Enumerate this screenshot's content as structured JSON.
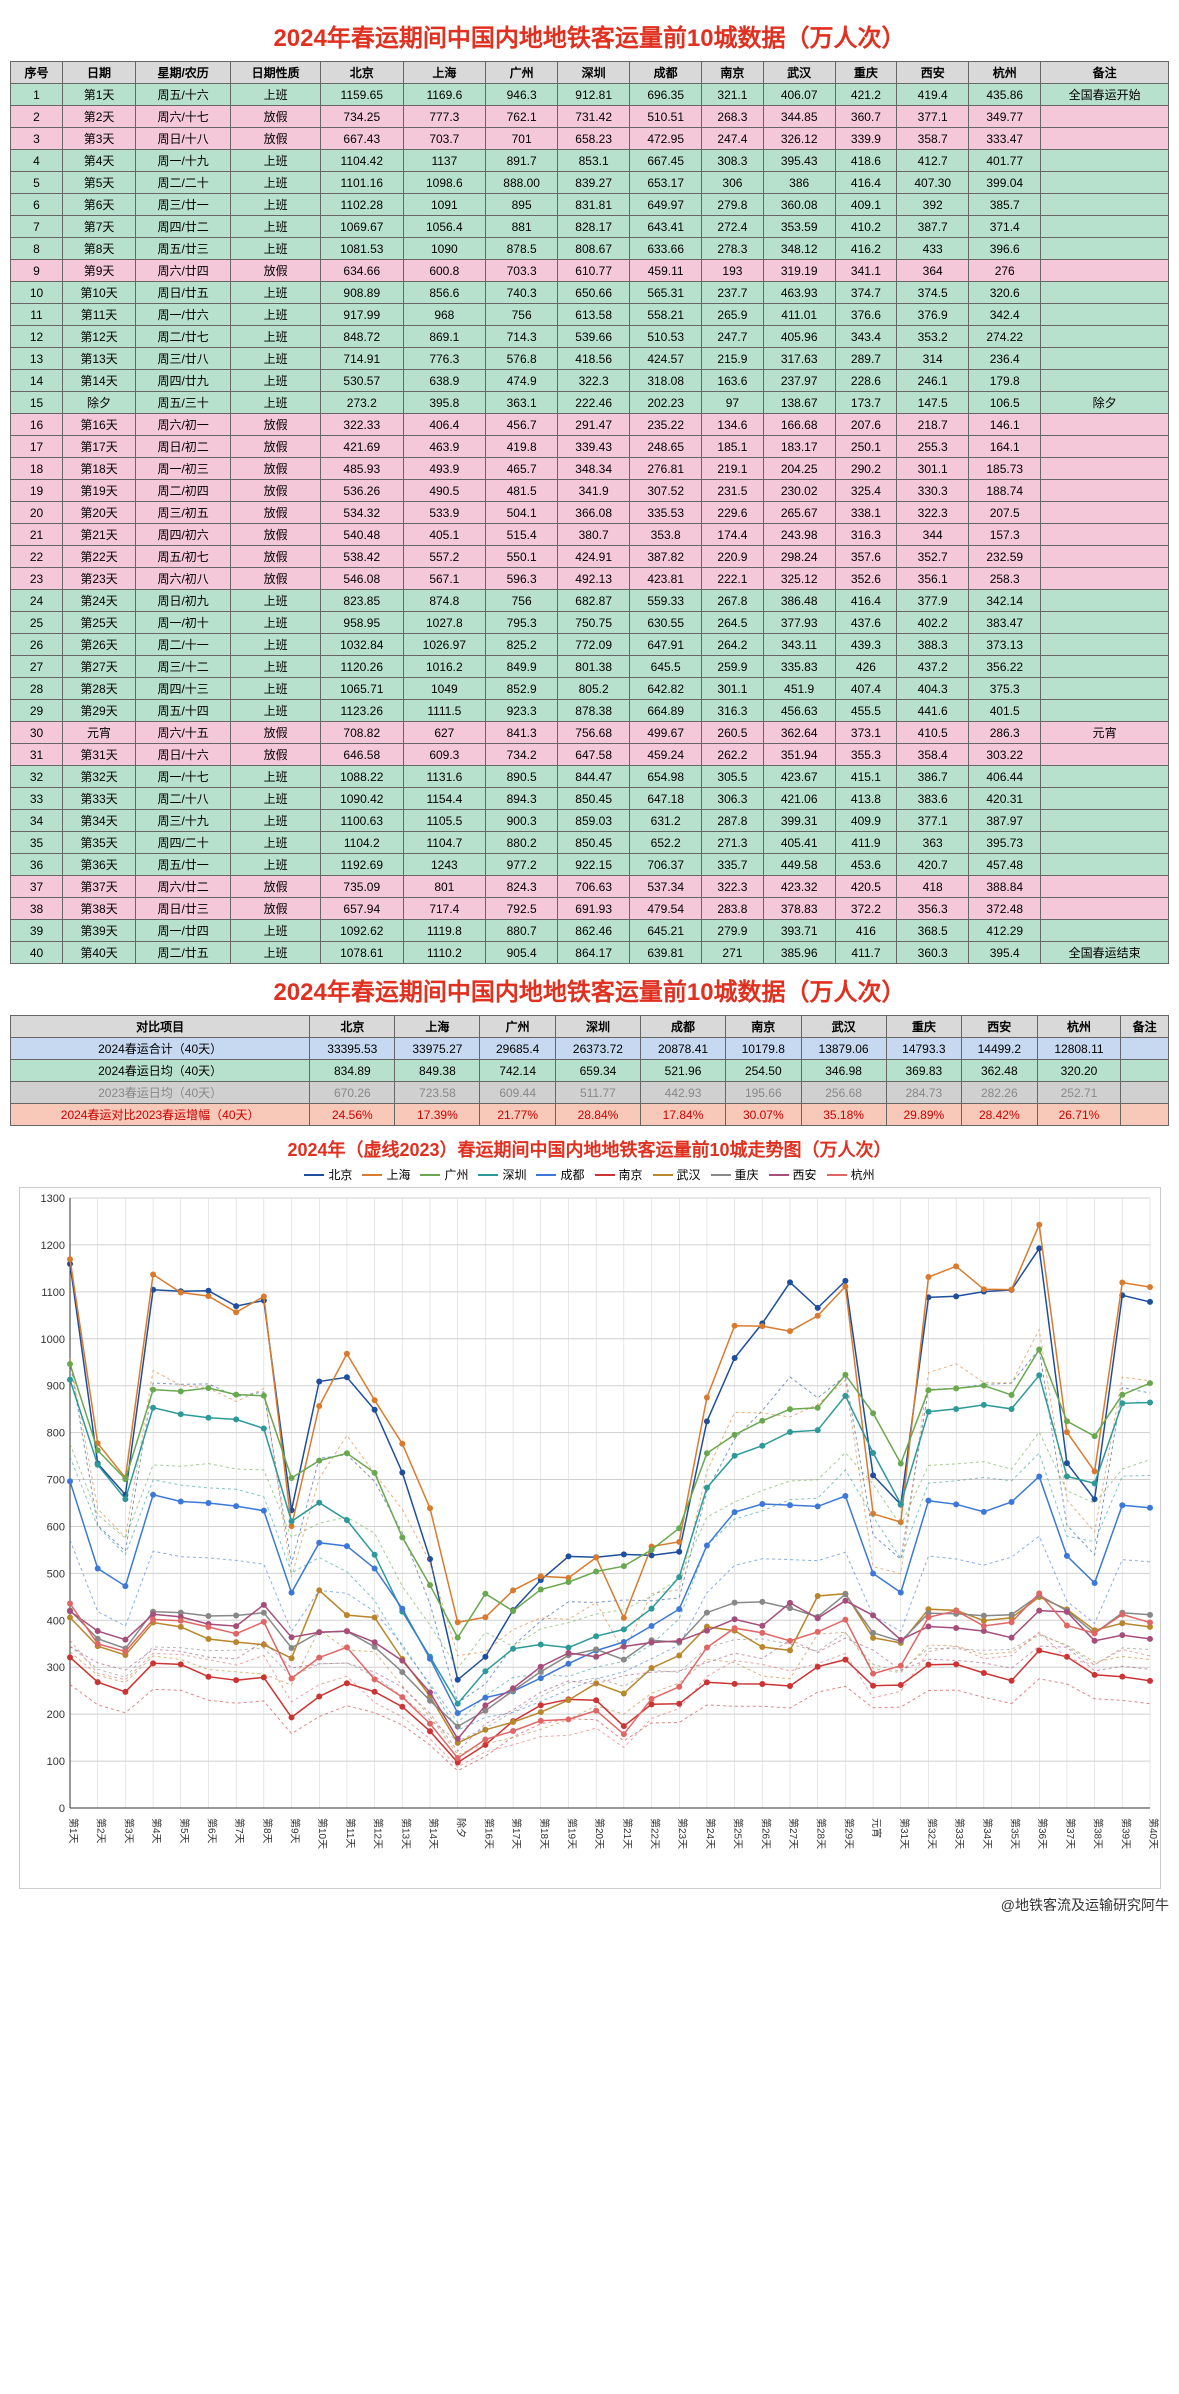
{
  "title_main": "2024年春运期间中国内地地铁客运量前10城数据（万人次）",
  "chart_title": "2024年（虚线2023）春运期间中国内地地铁客运量前10城走势图（万人次）",
  "footer": "@地铁客流及运输研究阿牛",
  "main_table": {
    "columns": [
      "序号",
      "日期",
      "星期/农历",
      "日期性质",
      "北京",
      "上海",
      "广州",
      "深圳",
      "成都",
      "南京",
      "武汉",
      "重庆",
      "西安",
      "杭州",
      "备注"
    ],
    "rows": [
      [
        "1",
        "第1天",
        "周五/十六",
        "上班",
        "1159.65",
        "1169.6",
        "946.3",
        "912.81",
        "696.35",
        "321.1",
        "406.07",
        "421.2",
        "419.4",
        "435.86",
        "全国春运开始"
      ],
      [
        "2",
        "第2天",
        "周六/十七",
        "放假",
        "734.25",
        "777.3",
        "762.1",
        "731.42",
        "510.51",
        "268.3",
        "344.85",
        "360.7",
        "377.1",
        "349.77",
        ""
      ],
      [
        "3",
        "第3天",
        "周日/十八",
        "放假",
        "667.43",
        "703.7",
        "701",
        "658.23",
        "472.95",
        "247.4",
        "326.12",
        "339.9",
        "358.7",
        "333.47",
        ""
      ],
      [
        "4",
        "第4天",
        "周一/十九",
        "上班",
        "1104.42",
        "1137",
        "891.7",
        "853.1",
        "667.45",
        "308.3",
        "395.43",
        "418.6",
        "412.7",
        "401.77",
        ""
      ],
      [
        "5",
        "第5天",
        "周二/二十",
        "上班",
        "1101.16",
        "1098.6",
        "888.00",
        "839.27",
        "653.17",
        "306",
        "386",
        "416.4",
        "407.30",
        "399.04",
        ""
      ],
      [
        "6",
        "第6天",
        "周三/廿一",
        "上班",
        "1102.28",
        "1091",
        "895",
        "831.81",
        "649.97",
        "279.8",
        "360.08",
        "409.1",
        "392",
        "385.7",
        ""
      ],
      [
        "7",
        "第7天",
        "周四/廿二",
        "上班",
        "1069.67",
        "1056.4",
        "881",
        "828.17",
        "643.41",
        "272.4",
        "353.59",
        "410.2",
        "387.7",
        "371.4",
        ""
      ],
      [
        "8",
        "第8天",
        "周五/廿三",
        "上班",
        "1081.53",
        "1090",
        "878.5",
        "808.67",
        "633.66",
        "278.3",
        "348.12",
        "416.2",
        "433",
        "396.6",
        ""
      ],
      [
        "9",
        "第9天",
        "周六/廿四",
        "放假",
        "634.66",
        "600.8",
        "703.3",
        "610.77",
        "459.11",
        "193",
        "319.19",
        "341.1",
        "364",
        "276",
        ""
      ],
      [
        "10",
        "第10天",
        "周日/廿五",
        "上班",
        "908.89",
        "856.6",
        "740.3",
        "650.66",
        "565.31",
        "237.7",
        "463.93",
        "374.7",
        "374.5",
        "320.6",
        ""
      ],
      [
        "11",
        "第11天",
        "周一/廿六",
        "上班",
        "917.99",
        "968",
        "756",
        "613.58",
        "558.21",
        "265.9",
        "411.01",
        "376.6",
        "376.9",
        "342.4",
        ""
      ],
      [
        "12",
        "第12天",
        "周二/廿七",
        "上班",
        "848.72",
        "869.1",
        "714.3",
        "539.66",
        "510.53",
        "247.7",
        "405.96",
        "343.4",
        "353.2",
        "274.22",
        ""
      ],
      [
        "13",
        "第13天",
        "周三/廿八",
        "上班",
        "714.91",
        "776.3",
        "576.8",
        "418.56",
        "424.57",
        "215.9",
        "317.63",
        "289.7",
        "314",
        "236.4",
        ""
      ],
      [
        "14",
        "第14天",
        "周四/廿九",
        "上班",
        "530.57",
        "638.9",
        "474.9",
        "322.3",
        "318.08",
        "163.6",
        "237.97",
        "228.6",
        "246.1",
        "179.8",
        ""
      ],
      [
        "15",
        "除夕",
        "周五/三十",
        "上班",
        "273.2",
        "395.8",
        "363.1",
        "222.46",
        "202.23",
        "97",
        "138.67",
        "173.7",
        "147.5",
        "106.5",
        "除夕"
      ],
      [
        "16",
        "第16天",
        "周六/初一",
        "放假",
        "322.33",
        "406.4",
        "456.7",
        "291.47",
        "235.22",
        "134.6",
        "166.68",
        "207.6",
        "218.7",
        "146.1",
        ""
      ],
      [
        "17",
        "第17天",
        "周日/初二",
        "放假",
        "421.69",
        "463.9",
        "419.8",
        "339.43",
        "248.65",
        "185.1",
        "183.17",
        "250.1",
        "255.3",
        "164.1",
        ""
      ],
      [
        "18",
        "第18天",
        "周一/初三",
        "放假",
        "485.93",
        "493.9",
        "465.7",
        "348.34",
        "276.81",
        "219.1",
        "204.25",
        "290.2",
        "301.1",
        "185.73",
        ""
      ],
      [
        "19",
        "第19天",
        "周二/初四",
        "放假",
        "536.26",
        "490.5",
        "481.5",
        "341.9",
        "307.52",
        "231.5",
        "230.02",
        "325.4",
        "330.3",
        "188.74",
        ""
      ],
      [
        "20",
        "第20天",
        "周三/初五",
        "放假",
        "534.32",
        "533.9",
        "504.1",
        "366.08",
        "335.53",
        "229.6",
        "265.67",
        "338.1",
        "322.3",
        "207.5",
        ""
      ],
      [
        "21",
        "第21天",
        "周四/初六",
        "放假",
        "540.48",
        "405.1",
        "515.4",
        "380.7",
        "353.8",
        "174.4",
        "243.98",
        "316.3",
        "344",
        "157.3",
        ""
      ],
      [
        "22",
        "第22天",
        "周五/初七",
        "放假",
        "538.42",
        "557.2",
        "550.1",
        "424.91",
        "387.82",
        "220.9",
        "298.24",
        "357.6",
        "352.7",
        "232.59",
        ""
      ],
      [
        "23",
        "第23天",
        "周六/初八",
        "放假",
        "546.08",
        "567.1",
        "596.3",
        "492.13",
        "423.81",
        "222.1",
        "325.12",
        "352.6",
        "356.1",
        "258.3",
        ""
      ],
      [
        "24",
        "第24天",
        "周日/初九",
        "上班",
        "823.85",
        "874.8",
        "756",
        "682.87",
        "559.33",
        "267.8",
        "386.48",
        "416.4",
        "377.9",
        "342.14",
        ""
      ],
      [
        "25",
        "第25天",
        "周一/初十",
        "上班",
        "958.95",
        "1027.8",
        "795.3",
        "750.75",
        "630.55",
        "264.5",
        "377.93",
        "437.6",
        "402.2",
        "383.47",
        ""
      ],
      [
        "26",
        "第26天",
        "周二/十一",
        "上班",
        "1032.84",
        "1026.97",
        "825.2",
        "772.09",
        "647.91",
        "264.2",
        "343.11",
        "439.3",
        "388.3",
        "373.13",
        ""
      ],
      [
        "27",
        "第27天",
        "周三/十二",
        "上班",
        "1120.26",
        "1016.2",
        "849.9",
        "801.38",
        "645.5",
        "259.9",
        "335.83",
        "426",
        "437.2",
        "356.22",
        ""
      ],
      [
        "28",
        "第28天",
        "周四/十三",
        "上班",
        "1065.71",
        "1049",
        "852.9",
        "805.2",
        "642.82",
        "301.1",
        "451.9",
        "407.4",
        "404.3",
        "375.3",
        ""
      ],
      [
        "29",
        "第29天",
        "周五/十四",
        "上班",
        "1123.26",
        "1111.5",
        "923.3",
        "878.38",
        "664.89",
        "316.3",
        "456.63",
        "455.5",
        "441.6",
        "401.5",
        ""
      ],
      [
        "30",
        "元宵",
        "周六/十五",
        "放假",
        "708.82",
        "627",
        "841.3",
        "756.68",
        "499.67",
        "260.5",
        "362.64",
        "373.1",
        "410.5",
        "286.3",
        "元宵"
      ],
      [
        "31",
        "第31天",
        "周日/十六",
        "放假",
        "646.58",
        "609.3",
        "734.2",
        "647.58",
        "459.24",
        "262.2",
        "351.94",
        "355.3",
        "358.4",
        "303.22",
        ""
      ],
      [
        "32",
        "第32天",
        "周一/十七",
        "上班",
        "1088.22",
        "1131.6",
        "890.5",
        "844.47",
        "654.98",
        "305.5",
        "423.67",
        "415.1",
        "386.7",
        "406.44",
        ""
      ],
      [
        "33",
        "第33天",
        "周二/十八",
        "上班",
        "1090.42",
        "1154.4",
        "894.3",
        "850.45",
        "647.18",
        "306.3",
        "421.06",
        "413.8",
        "383.6",
        "420.31",
        ""
      ],
      [
        "34",
        "第34天",
        "周三/十九",
        "上班",
        "1100.63",
        "1105.5",
        "900.3",
        "859.03",
        "631.2",
        "287.8",
        "399.31",
        "409.9",
        "377.1",
        "387.97",
        ""
      ],
      [
        "35",
        "第35天",
        "周四/二十",
        "上班",
        "1104.2",
        "1104.7",
        "880.2",
        "850.45",
        "652.2",
        "271.3",
        "405.41",
        "411.9",
        "363",
        "395.73",
        ""
      ],
      [
        "36",
        "第36天",
        "周五/廿一",
        "上班",
        "1192.69",
        "1243",
        "977.2",
        "922.15",
        "706.37",
        "335.7",
        "449.58",
        "453.6",
        "420.7",
        "457.48",
        ""
      ],
      [
        "37",
        "第37天",
        "周六/廿二",
        "放假",
        "735.09",
        "801",
        "824.3",
        "706.63",
        "537.34",
        "322.3",
        "423.32",
        "420.5",
        "418",
        "388.84",
        ""
      ],
      [
        "38",
        "第38天",
        "周日/廿三",
        "放假",
        "657.94",
        "717.4",
        "792.5",
        "691.93",
        "479.54",
        "283.8",
        "378.83",
        "372.2",
        "356.3",
        "372.48",
        ""
      ],
      [
        "39",
        "第39天",
        "周一/廿四",
        "上班",
        "1092.62",
        "1119.8",
        "880.7",
        "862.46",
        "645.21",
        "279.9",
        "393.71",
        "416",
        "368.5",
        "412.29",
        ""
      ],
      [
        "40",
        "第40天",
        "周二/廿五",
        "上班",
        "1078.61",
        "1110.2",
        "905.4",
        "864.17",
        "639.81",
        "271",
        "385.96",
        "411.7",
        "360.3",
        "395.4",
        "全国春运结束"
      ]
    ],
    "green_rows": [
      0,
      3,
      4,
      5,
      6,
      7,
      9,
      10,
      11,
      12,
      13,
      14,
      23,
      24,
      25,
      26,
      27,
      28,
      31,
      32,
      33,
      34,
      35,
      38,
      39
    ],
    "pink_rows": [
      1,
      2,
      8,
      15,
      16,
      17,
      18,
      19,
      20,
      21,
      22,
      29,
      30,
      36,
      37
    ]
  },
  "summary_table": {
    "columns": [
      "对比项目",
      "北京",
      "上海",
      "广州",
      "深圳",
      "成都",
      "南京",
      "武汉",
      "重庆",
      "西安",
      "杭州",
      "备注"
    ],
    "rows": [
      {
        "style": "row-blue",
        "cells": [
          "2024春运合计（40天）",
          "33395.53",
          "33975.27",
          "29685.4",
          "26373.72",
          "20878.41",
          "10179.8",
          "13879.06",
          "14793.3",
          "14499.2",
          "12808.11",
          ""
        ]
      },
      {
        "style": "row-green",
        "cells": [
          "2024春运日均（40天）",
          "834.89",
          "849.38",
          "742.14",
          "659.34",
          "521.96",
          "254.50",
          "346.98",
          "369.83",
          "362.48",
          "320.20",
          ""
        ]
      },
      {
        "style": "row-grey",
        "cells": [
          "2023春运日均（40天）",
          "670.26",
          "723.58",
          "609.44",
          "511.77",
          "442.93",
          "195.66",
          "256.68",
          "284.73",
          "282.26",
          "252.71",
          ""
        ]
      },
      {
        "style": "row-red",
        "cells": [
          "2024春运对比2023春运增幅（40天）",
          "24.56%",
          "17.39%",
          "21.77%",
          "28.84%",
          "17.84%",
          "30.07%",
          "35.18%",
          "29.89%",
          "28.42%",
          "26.71%",
          ""
        ]
      }
    ]
  },
  "chart": {
    "cities": [
      "北京",
      "上海",
      "广州",
      "深圳",
      "成都",
      "南京",
      "武汉",
      "重庆",
      "西安",
      "杭州"
    ],
    "colors": [
      "#1f4e9c",
      "#d97b2f",
      "#6aa84f",
      "#2e9999",
      "#3c78d8",
      "#cc3333",
      "#b8862b",
      "#888888",
      "#a64d79",
      "#e06666"
    ],
    "x_labels": [
      "第1天",
      "第2天",
      "第3天",
      "第4天",
      "第5天",
      "第6天",
      "第7天",
      "第8天",
      "第9天",
      "第10天",
      "第11天",
      "第12天",
      "第13天",
      "第14天",
      "除夕",
      "第16天",
      "第17天",
      "第18天",
      "第19天",
      "第20天",
      "第21天",
      "第22天",
      "第23天",
      "第24天",
      "第25天",
      "第26天",
      "第27天",
      "第28天",
      "第29天",
      "元宵",
      "第31天",
      "第32天",
      "第33天",
      "第34天",
      "第35天",
      "第36天",
      "第37天",
      "第38天",
      "第39天",
      "第40天"
    ],
    "ylim": [
      0,
      1300
    ],
    "ytick_step": 100,
    "grid_color": "#d0d0d0",
    "background": "#ffffff",
    "line_width": 1.5,
    "marker_size": 3,
    "data_cols_start": 4,
    "data_cols_count": 10
  }
}
